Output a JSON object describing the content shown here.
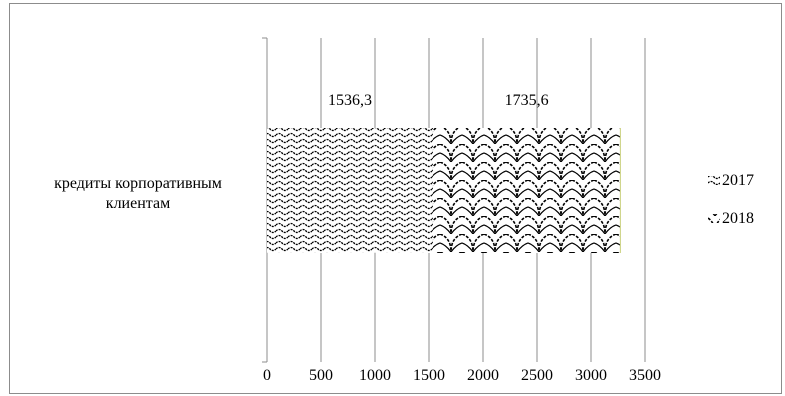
{
  "chart_data": {
    "type": "bar",
    "orientation": "horizontal",
    "stacked": true,
    "categories": [
      "кредиты корпоративным клиентам"
    ],
    "category_label_lines": [
      "кредиты корпоративным",
      "клиентам"
    ],
    "series": [
      {
        "name": "2017",
        "values": [
          1536.3
        ],
        "label": "1536,3",
        "pattern": "dense-wave"
      },
      {
        "name": "2018",
        "values": [
          1735.6
        ],
        "label": "1735,6",
        "pattern": "scales"
      }
    ],
    "xlim": [
      0,
      3500
    ],
    "xticks": [
      0,
      500,
      1000,
      1500,
      2000,
      2500,
      3000,
      3500
    ],
    "xtick_labels": [
      "0",
      "500",
      "1000",
      "1500",
      "2000",
      "2500",
      "3000",
      "3500"
    ],
    "grid": "vertical",
    "legend_position": "right",
    "title": "",
    "xlabel": "",
    "ylabel": ""
  }
}
